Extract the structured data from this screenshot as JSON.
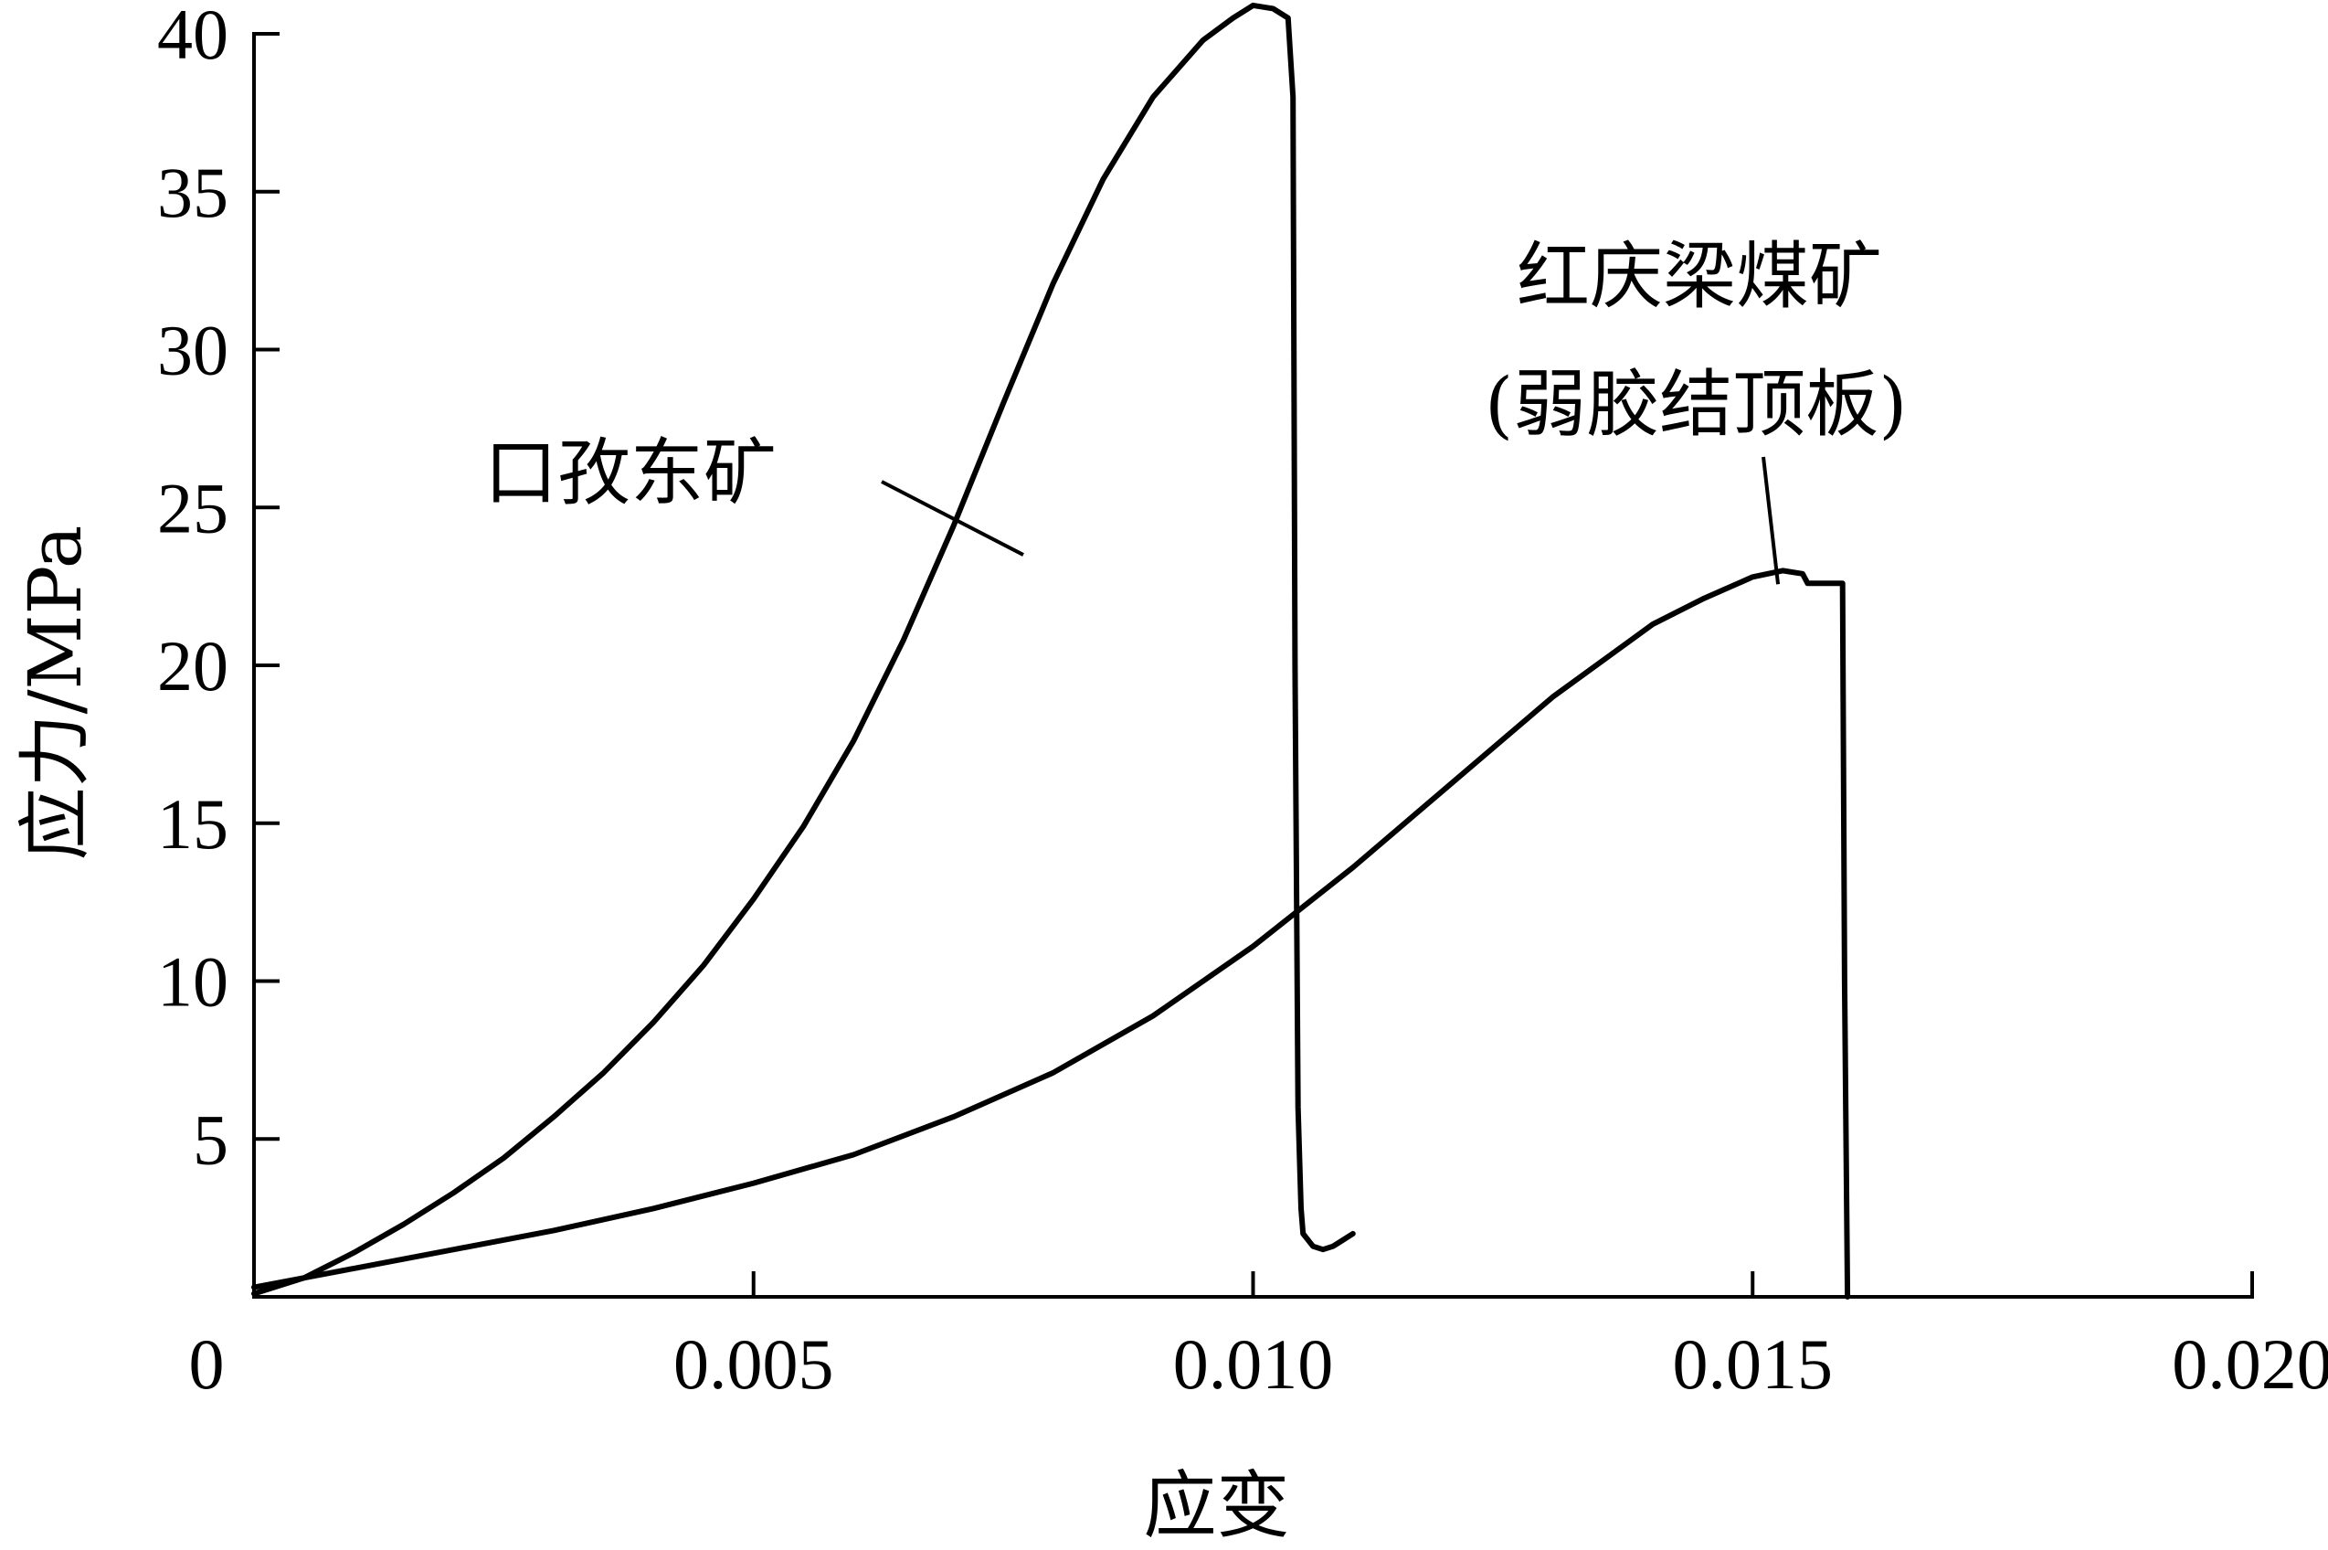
{
  "chart_data": {
    "type": "line",
    "title": "",
    "xlabel": "应变",
    "ylabel": "应力/MPa",
    "xlim": [
      0,
      0.02
    ],
    "ylim": [
      0,
      40
    ],
    "x_ticks": [
      0.005,
      0.01,
      0.015,
      0.02
    ],
    "x_tick_labels": [
      "0.005",
      "0.010",
      "0.015",
      "0.020"
    ],
    "y_ticks": [
      5,
      10,
      15,
      20,
      25,
      30,
      35,
      40
    ],
    "y_tick_labels": [
      "5",
      "10",
      "15",
      "20",
      "25",
      "30",
      "35",
      "40"
    ],
    "origin_label": "0",
    "grid": false,
    "series": [
      {
        "name": "口孜东矿",
        "x": [
          0,
          0.0005,
          0.001,
          0.0015,
          0.002,
          0.0025,
          0.003,
          0.0035,
          0.004,
          0.0045,
          0.005,
          0.0055,
          0.006,
          0.0065,
          0.007,
          0.0075,
          0.008,
          0.0085,
          0.009,
          0.0095,
          0.0098,
          0.01,
          0.0102,
          0.01035,
          0.0104,
          0.01042,
          0.01045,
          0.01048,
          0.0105,
          0.0106,
          0.0107,
          0.0108,
          0.0109,
          0.011
        ],
        "y": [
          0.1,
          0.6,
          1.4,
          2.3,
          3.3,
          4.4,
          5.7,
          7.1,
          8.7,
          10.5,
          12.6,
          14.9,
          17.6,
          20.8,
          24.4,
          28.3,
          32.1,
          35.4,
          38.0,
          39.8,
          40.5,
          40.9,
          40.8,
          40.5,
          38.0,
          20.0,
          6.0,
          2.8,
          2.0,
          1.6,
          1.5,
          1.6,
          1.8,
          2.0
        ]
      },
      {
        "name": "红庆梁煤矿(弱胶结顶板)",
        "x": [
          0,
          0.001,
          0.002,
          0.003,
          0.004,
          0.005,
          0.006,
          0.007,
          0.008,
          0.009,
          0.01,
          0.011,
          0.012,
          0.013,
          0.014,
          0.0145,
          0.015,
          0.0153,
          0.0155,
          0.01555,
          0.0156,
          0.0158,
          0.0159,
          0.01592,
          0.01595
        ],
        "y": [
          0.3,
          0.9,
          1.5,
          2.1,
          2.8,
          3.6,
          4.5,
          5.7,
          7.1,
          8.9,
          11.1,
          13.6,
          16.3,
          19.0,
          21.3,
          22.1,
          22.8,
          23.0,
          22.9,
          22.6,
          22.6,
          22.6,
          22.6,
          10.0,
          0.0
        ]
      }
    ],
    "annotations": [
      {
        "text": "口孜东矿",
        "points_to": [
          0.0077,
          23.5
        ]
      },
      {
        "text_lines": [
          "红庆梁煤矿",
          "(弱胶结顶板)"
        ],
        "points_to": [
          0.0153,
          22.8
        ]
      }
    ]
  }
}
